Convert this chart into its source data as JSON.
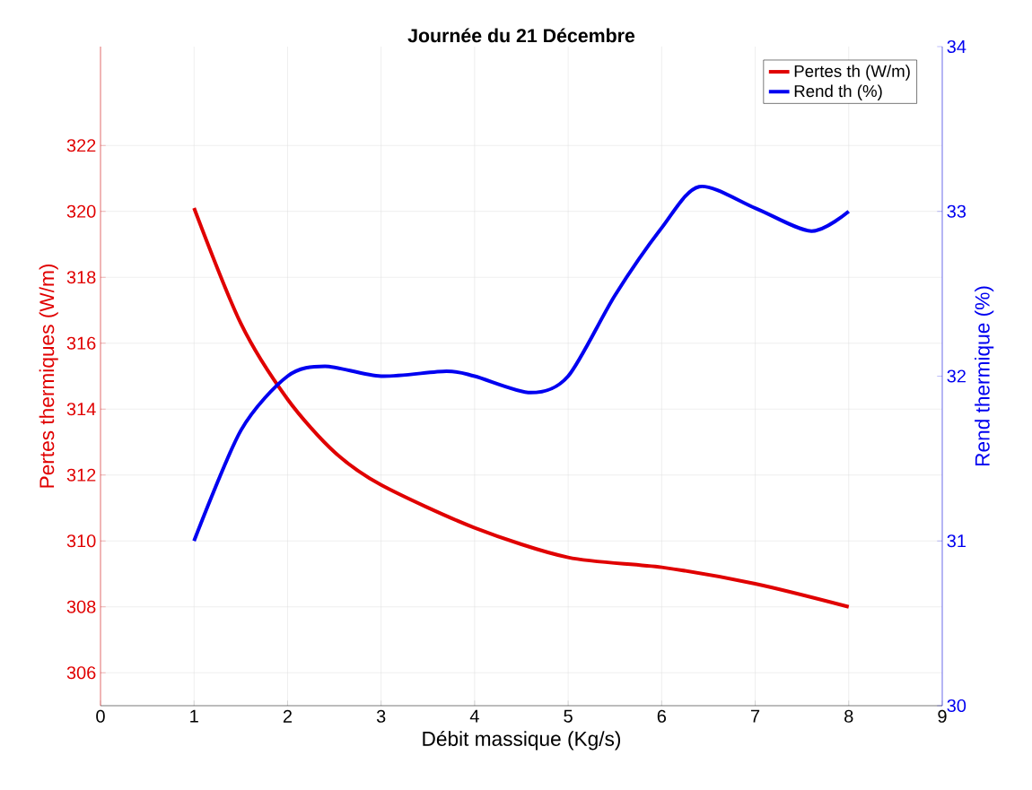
{
  "chart_data": {
    "type": "line",
    "title": "Journée du 21 Décembre",
    "xlabel": "Débit massique (Kg/s)",
    "ylabel": "Pertes thermiques (W/m)",
    "y2label": "Rend thermique (%)",
    "xlim": [
      0,
      9
    ],
    "xticks": [
      0,
      1,
      2,
      3,
      4,
      5,
      6,
      7,
      8,
      9
    ],
    "ylim": [
      305,
      325
    ],
    "yticks": [
      306,
      308,
      310,
      312,
      314,
      316,
      318,
      320,
      322
    ],
    "y2lim": [
      30,
      34
    ],
    "y2ticks": [
      30,
      31,
      32,
      33,
      34
    ],
    "grid": true,
    "legend": "top right",
    "marker": "none",
    "line_style": "solid",
    "series": [
      {
        "name": "Pertes th (W/m)",
        "color": "#e00000",
        "x": [
          1,
          1.5,
          2,
          2.5,
          3,
          4,
          5,
          6,
          7,
          8
        ],
        "values": [
          320.1,
          316.6,
          314.3,
          312.7,
          311.7,
          310.4,
          309.5,
          309.2,
          308.7,
          308.0
        ]
      },
      {
        "name": "Rend th (%)",
        "color": "#0000f0",
        "axis": "y2",
        "x": [
          1,
          1.5,
          2,
          2.4,
          3,
          3.7,
          4,
          4.6,
          5,
          5.5,
          6,
          6.4,
          7,
          7.6,
          8
        ],
        "values": [
          31.0,
          31.67,
          32.0,
          32.06,
          32.0,
          32.03,
          32.0,
          31.9,
          32.0,
          32.49,
          32.9,
          33.15,
          33.02,
          32.88,
          33.0
        ]
      }
    ]
  }
}
